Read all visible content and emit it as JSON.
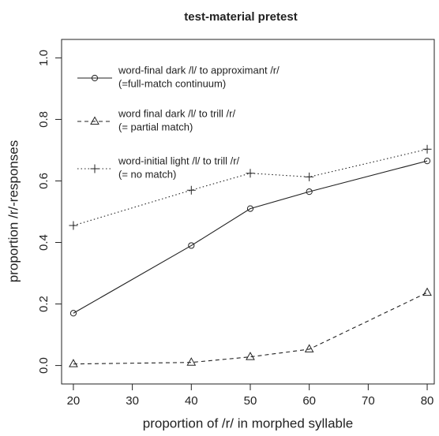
{
  "chart_data": {
    "type": "line",
    "title": "test-material pretest",
    "xlabel": "proportion of /r/ in morphed syllable",
    "ylabel": "proportion /r/-responses",
    "x": [
      20,
      40,
      50,
      60,
      80
    ],
    "xlim": [
      18,
      81.2
    ],
    "ylim": [
      -0.06,
      1.06
    ],
    "xticks": [
      20,
      30,
      40,
      50,
      60,
      70,
      80
    ],
    "yticks": [
      {
        "value": 0,
        "label": "0.0"
      },
      0.2,
      0.4,
      0.6,
      0.8,
      {
        "value": 1,
        "label": "1.0"
      }
    ],
    "series": [
      {
        "name": [
          "word-final dark /l/ to approximant /r/",
          "(=full-match continuum)"
        ],
        "color": "#222222",
        "line_style": "solid",
        "marker": "circle",
        "values": [
          0.17,
          0.39,
          0.51,
          0.565,
          0.665
        ]
      },
      {
        "name": [
          "word final dark /l/ to trill /r/",
          "(= partial match)"
        ],
        "color": "#222222",
        "line_style": "dashed",
        "marker": "triangle",
        "values": [
          0.005,
          0.01,
          0.028,
          0.053,
          0.237
        ]
      },
      {
        "name": [
          "word-initial light /l/ to trill /r/",
          "(= no match)"
        ],
        "color": "#222222",
        "line_style": "dotted",
        "marker": "plus",
        "values": [
          0.455,
          0.57,
          0.625,
          0.613,
          0.703
        ]
      }
    ]
  }
}
